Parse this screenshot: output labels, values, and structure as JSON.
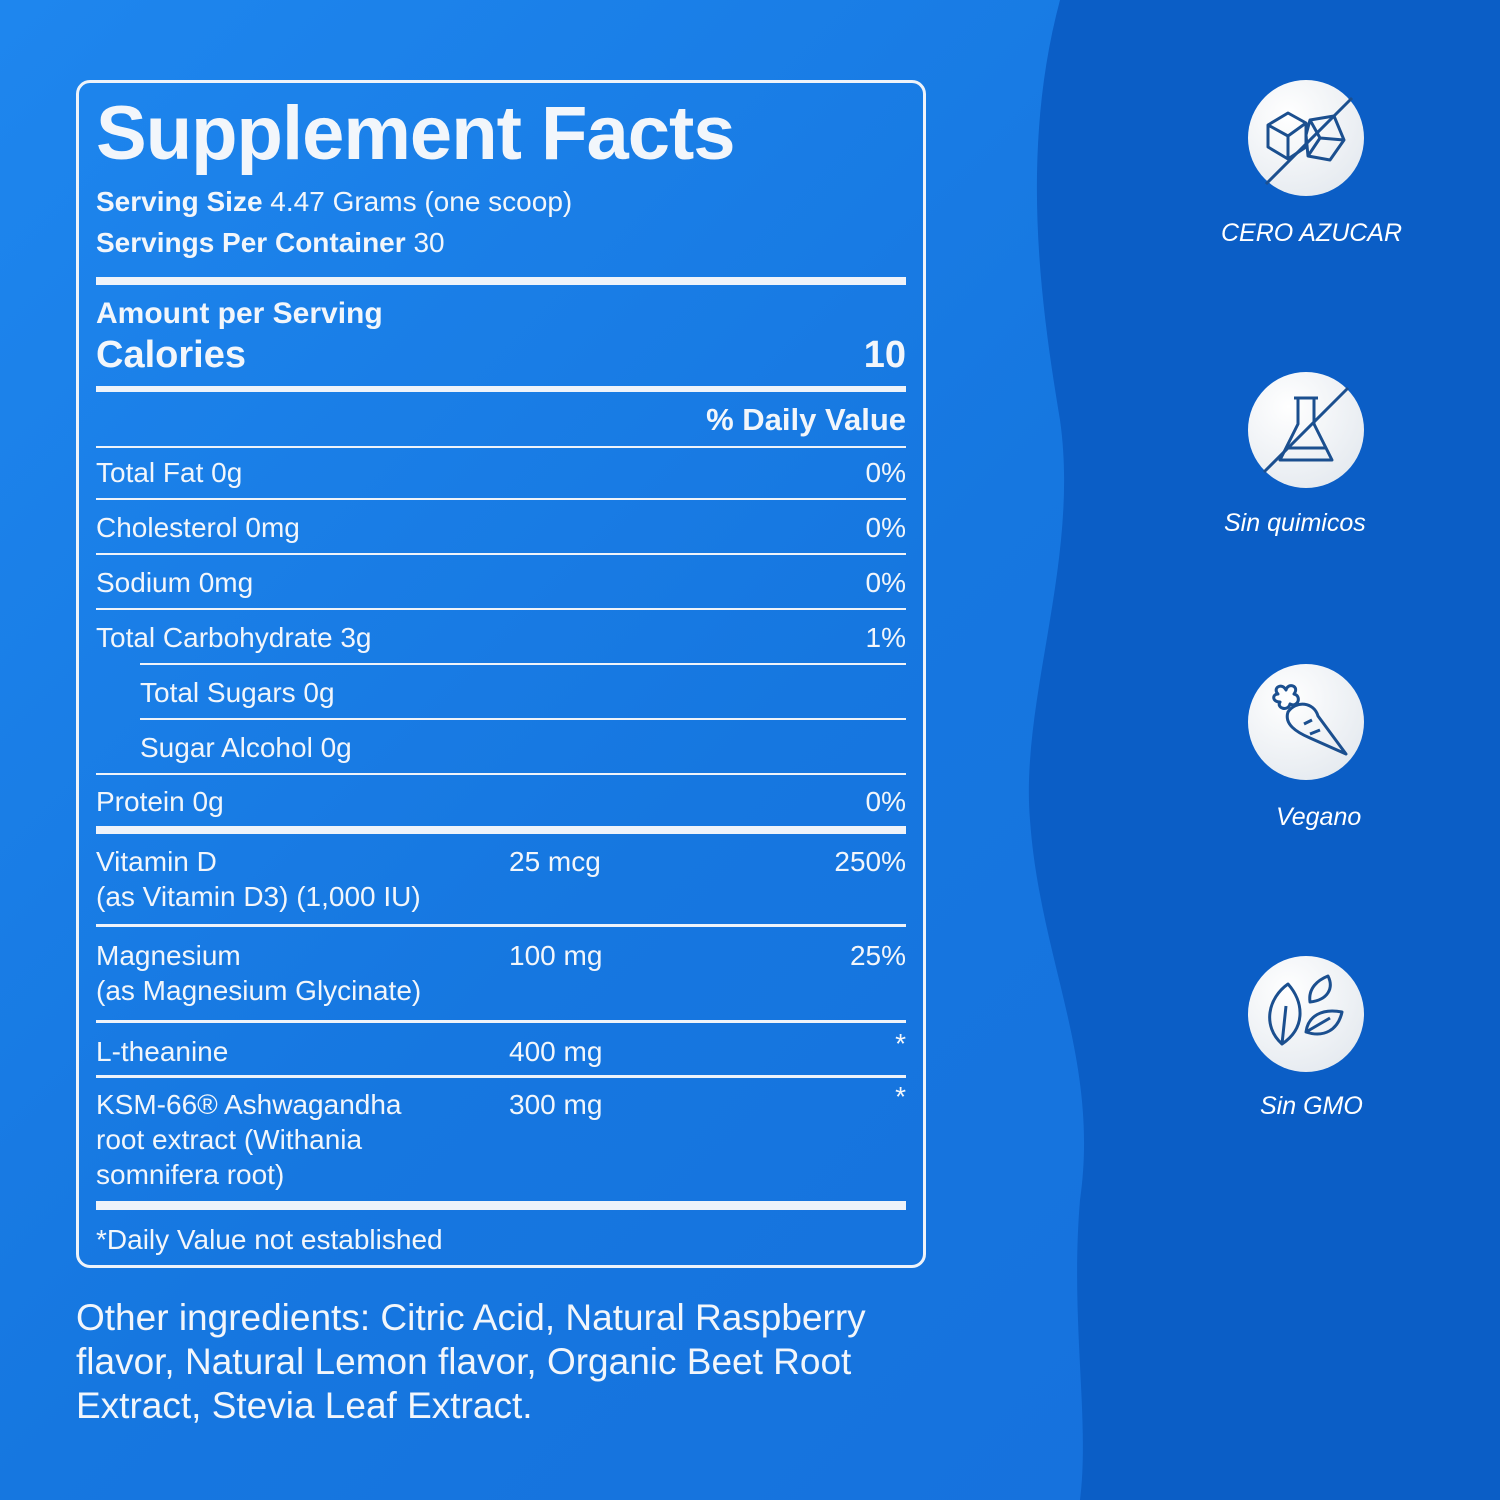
{
  "colors": {
    "background_left": "#1a7fe8",
    "background_right": "#0b5ec6",
    "text": "#f2f6fb",
    "icon_stroke": "#1b4f8f"
  },
  "label": {
    "title": "Supplement Facts",
    "serving_size_label": "Serving Size",
    "serving_size_value": "4.47 Grams (one scoop)",
    "servings_label": "Servings Per Container",
    "servings_value": "30",
    "amount_per_serving": "Amount per Serving",
    "calories_label": "Calories",
    "calories_value": "10",
    "daily_value_header": "% Daily Value",
    "nutrients": [
      {
        "name": "Total Fat 0g",
        "dv": "0%"
      },
      {
        "name": "Cholesterol 0mg",
        "dv": "0%"
      },
      {
        "name": "Sodium 0mg",
        "dv": "0%"
      },
      {
        "name": "Total Carbohydrate 3g",
        "dv": "1%"
      },
      {
        "name": "Total Sugars 0g",
        "dv": ""
      },
      {
        "name": "Sugar Alcohol 0g",
        "dv": ""
      },
      {
        "name": "Protein 0g",
        "dv": "0%"
      }
    ],
    "ingredients": [
      {
        "name": "Vitamin D",
        "sub": "(as Vitamin D3) (1,000 IU)",
        "amount": "25 mcg",
        "dv": "250%"
      },
      {
        "name": "Magnesium",
        "sub": "(as Magnesium Glycinate)",
        "amount": "100 mg",
        "dv": "25%"
      },
      {
        "name": "L-theanine",
        "sub": "",
        "amount": "400 mg",
        "dv": "*"
      },
      {
        "name": "KSM-66® Ashwagandha",
        "sub": "root extract (Withania",
        "sub2": "somnifera root)",
        "amount": "300 mg",
        "dv": "*"
      }
    ],
    "footnote": "*Daily Value not established"
  },
  "other_ingredients": "Other ingredients: Citric Acid, Natural Raspberry flavor, Natural Lemon flavor, Organic Beet Root Extract, Stevia Leaf Extract.",
  "badges": [
    {
      "icon": "no-sugar-cubes-icon",
      "label": "CERO AZUCAR"
    },
    {
      "icon": "no-chemicals-flask-icon",
      "label": "Sin quimicos"
    },
    {
      "icon": "carrot-icon",
      "label": "Vegano"
    },
    {
      "icon": "leaves-icon",
      "label": "Sin GMO"
    }
  ]
}
